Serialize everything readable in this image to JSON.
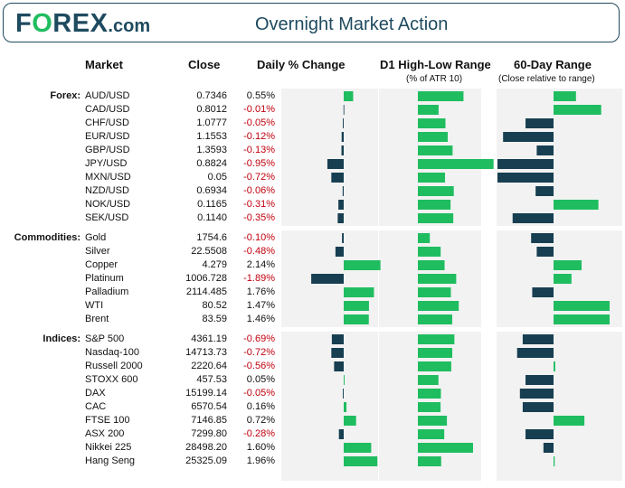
{
  "header": {
    "logo_main": "F",
    "logo_o": "O",
    "logo_rest": "REX",
    "logo_com": ".com",
    "title": "Overnight Market Action"
  },
  "columns": {
    "market": "Market",
    "close": "Close",
    "daily": "Daily % Change",
    "range": "D1 High-Low Range",
    "range_sub": "(% of ATR 10)",
    "day60": "60-Day Range",
    "day60_sub": "(Close relative to range)"
  },
  "colors": {
    "positive": "#1fbd5f",
    "negative": "#173f51",
    "negative_text": "#c0000e"
  },
  "chart_data": {
    "type": "table",
    "groups": [
      {
        "name": "Forex:",
        "rows": [
          {
            "market": "AUD/USD",
            "close": "0.7346",
            "change_label": "0.55%",
            "change": 0.55,
            "range_label": "117.3%",
            "range": 117.3,
            "pos60": 0.4
          },
          {
            "market": "CAD/USD",
            "close": "0.8012",
            "change_label": "-0.01%",
            "change": -0.01,
            "range_label": "53.3%",
            "range": 53.3,
            "pos60": 0.85
          },
          {
            "market": "CHF/USD",
            "close": "1.0777",
            "change_label": "-0.05%",
            "change": -0.05,
            "range_label": "70.9%",
            "range": 70.9,
            "pos60": -0.5
          },
          {
            "market": "EUR/USD",
            "close": "1.1553",
            "change_label": "-0.12%",
            "change": -0.12,
            "range_label": "76.7%",
            "range": 76.7,
            "pos60": -0.9
          },
          {
            "market": "GBP/USD",
            "close": "1.3593",
            "change_label": "-0.13%",
            "change": -0.13,
            "range_label": "89.3%",
            "range": 89.3,
            "pos60": -0.3
          },
          {
            "market": "JPY/USD",
            "close": "0.8824",
            "change_label": "-0.95%",
            "change": -0.95,
            "range_label": "194.7%",
            "range": 194.7,
            "pos60": -1.0
          },
          {
            "market": "MXN/USD",
            "close": "0.05",
            "change_label": "-0.72%",
            "change": -0.72,
            "range_label": "69.8%",
            "range": 69.8,
            "pos60": -1.0
          },
          {
            "market": "NZD/USD",
            "close": "0.6934",
            "change_label": "-0.06%",
            "change": -0.06,
            "range_label": "92.3%",
            "range": 92.3,
            "pos60": -0.32
          },
          {
            "market": "NOK/USD",
            "close": "0.1165",
            "change_label": "-0.31%",
            "change": -0.31,
            "range_label": "84.0%",
            "range": 84.0,
            "pos60": 0.8
          },
          {
            "market": "SEK/USD",
            "close": "0.1140",
            "change_label": "-0.35%",
            "change": -0.35,
            "range_label": "91.0%",
            "range": 91.0,
            "pos60": -0.73
          }
        ]
      },
      {
        "name": "Commodities:",
        "rows": [
          {
            "market": "Gold",
            "close": "1754.6",
            "change_label": "-0.10%",
            "change": -0.1,
            "range_label": "30.7%",
            "range": 30.7,
            "pos60": -0.4
          },
          {
            "market": "Silver",
            "close": "22.5508",
            "change_label": "-0.48%",
            "change": -0.48,
            "range_label": "58.6%",
            "range": 58.6,
            "pos60": -0.3
          },
          {
            "market": "Copper",
            "close": "4.279",
            "change_label": "2.14%",
            "change": 2.14,
            "range_label": "68.7%",
            "range": 68.7,
            "pos60": 0.5
          },
          {
            "market": "Platinum",
            "close": "1006.728",
            "change_label": "-1.89%",
            "change": -1.89,
            "range_label": "98.6%",
            "range": 98.6,
            "pos60": 0.32
          },
          {
            "market": "Palladium",
            "close": "2114.485",
            "change_label": "1.76%",
            "change": 1.76,
            "range_label": "84.8%",
            "range": 84.8,
            "pos60": -0.38
          },
          {
            "market": "WTI",
            "close": "80.52",
            "change_label": "1.47%",
            "change": 1.47,
            "range_label": "105.1%",
            "range": 105.1,
            "pos60": 1.0
          },
          {
            "market": "Brent",
            "close": "83.59",
            "change_label": "1.46%",
            "change": 1.46,
            "range_label": "88.3%",
            "range": 88.3,
            "pos60": 1.0
          }
        ]
      },
      {
        "name": "Indices:",
        "rows": [
          {
            "market": "S&P 500",
            "close": "4361.19",
            "change_label": "-0.69%",
            "change": -0.69,
            "range_label": "93.9%",
            "range": 93.9,
            "pos60": -0.55
          },
          {
            "market": "Nasdaq-100",
            "close": "14713.73",
            "change_label": "-0.72%",
            "change": -0.72,
            "range_label": "88.4%",
            "range": 88.4,
            "pos60": -0.65
          },
          {
            "market": "Russell 2000",
            "close": "2220.64",
            "change_label": "-0.56%",
            "change": -0.56,
            "range_label": "85.8%",
            "range": 85.8,
            "pos60": 0.03
          },
          {
            "market": "STOXX 600",
            "close": "457.53",
            "change_label": "0.05%",
            "change": 0.05,
            "range_label": "52.9%",
            "range": 52.9,
            "pos60": -0.5
          },
          {
            "market": "DAX",
            "close": "15199.14",
            "change_label": "-0.05%",
            "change": -0.05,
            "range_label": "59.2%",
            "range": 59.2,
            "pos60": -0.6
          },
          {
            "market": "CAC",
            "close": "6570.54",
            "change_label": "0.16%",
            "change": 0.16,
            "range_label": "58.3%",
            "range": 58.3,
            "pos60": -0.55
          },
          {
            "market": "FTSE 100",
            "close": "7146.85",
            "change_label": "0.72%",
            "change": 0.72,
            "range_label": "74.7%",
            "range": 74.7,
            "pos60": 0.55
          },
          {
            "market": "ASX 200",
            "close": "7299.80",
            "change_label": "-0.28%",
            "change": -0.28,
            "range_label": "67.8%",
            "range": 67.8,
            "pos60": -0.5
          },
          {
            "market": "Nikkei 225",
            "close": "28498.20",
            "change_label": "1.60%",
            "change": 1.6,
            "range_label": "141.8%",
            "range": 141.8,
            "pos60": -0.18
          },
          {
            "market": "Hang Seng",
            "close": "25325.09",
            "change_label": "1.96%",
            "change": 1.96,
            "range_label": "59.9%",
            "range": 59.9,
            "pos60": 0.02
          }
        ]
      }
    ]
  }
}
